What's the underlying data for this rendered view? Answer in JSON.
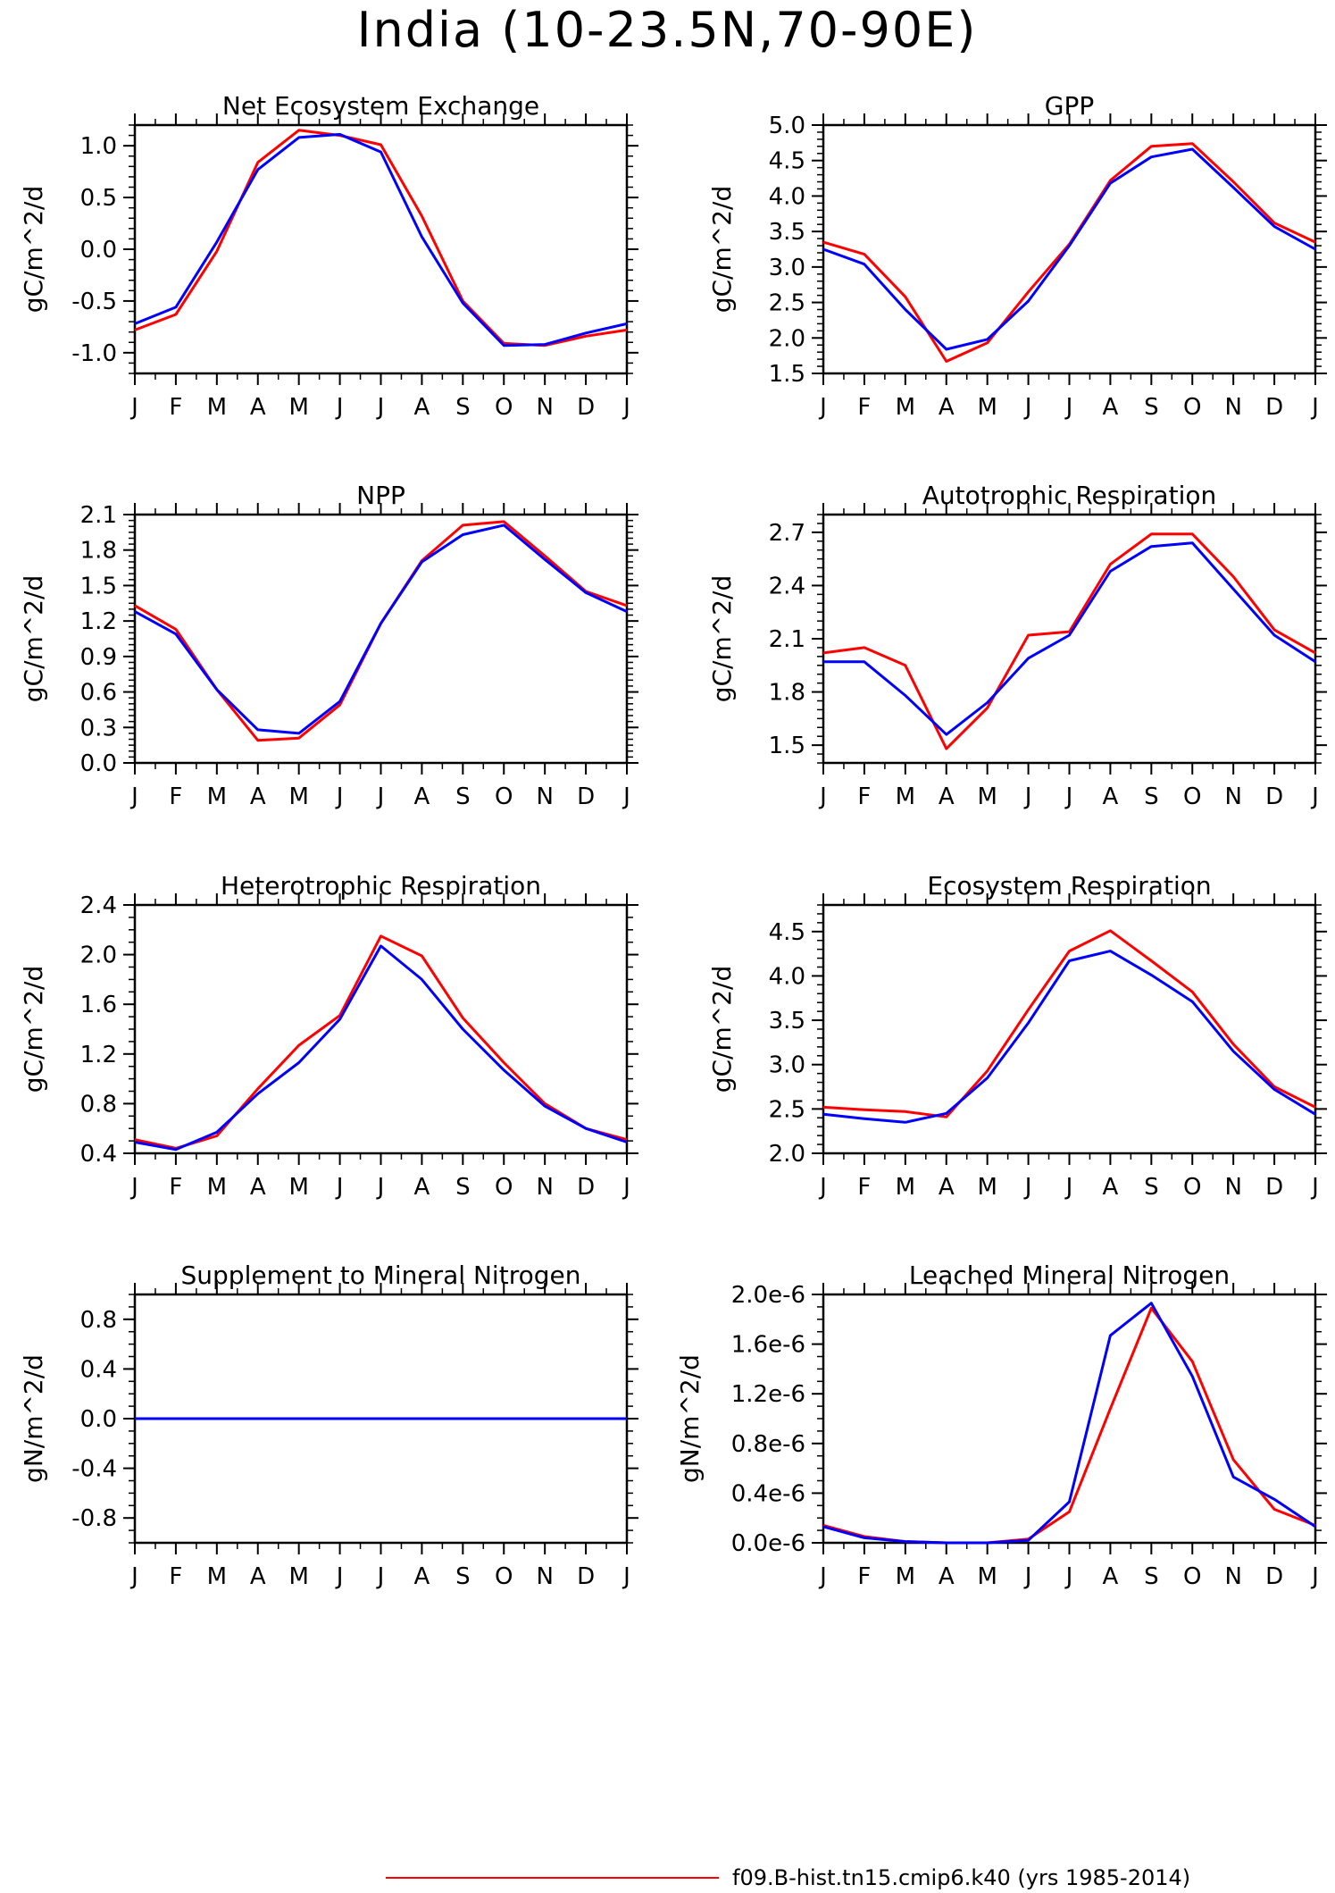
{
  "figure_title": "India (10-23.5N,70-90E)",
  "legend": {
    "entries": [
      {
        "label": "f09.B-hist.tn15.cmip6.k40 (yrs 1985-2014)",
        "color": "#ff0000"
      }
    ]
  },
  "months": [
    "J",
    "F",
    "M",
    "A",
    "M",
    "J",
    "J",
    "A",
    "S",
    "O",
    "N",
    "D",
    "J"
  ],
  "series_colors": [
    "#ff0000",
    "#0000ff"
  ],
  "chart_data": [
    {
      "type": "line",
      "title": "Net Ecosystem Exchange",
      "ylabel": "gC/m^2/d",
      "ylim": [
        -1.2,
        1.2
      ],
      "yticks": [
        -1.0,
        -0.5,
        0.0,
        0.5,
        1.0
      ],
      "ytick_labels": [
        "-1.0",
        "-0.5",
        "0.0",
        "0.5",
        "1.0"
      ],
      "yminor": 0.1,
      "series": [
        {
          "color": "#ff0000",
          "values": [
            -0.78,
            -0.63,
            -0.02,
            0.84,
            1.15,
            1.1,
            1.01,
            0.32,
            -0.5,
            -0.91,
            -0.93,
            -0.84,
            -0.78
          ]
        },
        {
          "color": "#0000ff",
          "values": [
            -0.72,
            -0.56,
            0.07,
            0.77,
            1.08,
            1.11,
            0.94,
            0.12,
            -0.52,
            -0.93,
            -0.92,
            -0.81,
            -0.72
          ]
        }
      ]
    },
    {
      "type": "line",
      "title": "GPP",
      "ylabel": "gC/m^2/d",
      "ylim": [
        1.5,
        5.0
      ],
      "yticks": [
        1.5,
        2.0,
        2.5,
        3.0,
        3.5,
        4.0,
        4.5,
        5.0
      ],
      "ytick_labels": [
        "1.5",
        "2.0",
        "2.5",
        "3.0",
        "3.5",
        "4.0",
        "4.5",
        "5.0"
      ],
      "yminor": 0.1,
      "series": [
        {
          "color": "#ff0000",
          "values": [
            3.35,
            3.18,
            2.58,
            1.67,
            1.93,
            2.65,
            3.32,
            4.22,
            4.7,
            4.74,
            4.2,
            3.62,
            3.35
          ]
        },
        {
          "color": "#0000ff",
          "values": [
            3.25,
            3.04,
            2.4,
            1.84,
            1.98,
            2.52,
            3.3,
            4.18,
            4.55,
            4.66,
            4.12,
            3.57,
            3.25
          ]
        }
      ]
    },
    {
      "type": "line",
      "title": "NPP",
      "ylabel": "gC/m^2/d",
      "ylim": [
        0.0,
        2.1
      ],
      "yticks": [
        0.0,
        0.3,
        0.6,
        0.9,
        1.2,
        1.5,
        1.8,
        2.1
      ],
      "ytick_labels": [
        "0.0",
        "0.3",
        "0.6",
        "0.9",
        "1.2",
        "1.5",
        "1.8",
        "2.1"
      ],
      "yminor": 0.05,
      "series": [
        {
          "color": "#ff0000",
          "values": [
            1.33,
            1.13,
            0.62,
            0.19,
            0.21,
            0.49,
            1.18,
            1.71,
            2.01,
            2.04,
            1.75,
            1.45,
            1.33
          ]
        },
        {
          "color": "#0000ff",
          "values": [
            1.28,
            1.09,
            0.62,
            0.28,
            0.25,
            0.52,
            1.18,
            1.7,
            1.93,
            2.01,
            1.72,
            1.44,
            1.28
          ]
        }
      ]
    },
    {
      "type": "line",
      "title": "Autotrophic Respiration",
      "ylabel": "gC/m^2/d",
      "ylim": [
        1.4,
        2.8
      ],
      "yticks": [
        1.5,
        1.8,
        2.1,
        2.4,
        2.7
      ],
      "ytick_labels": [
        "1.5",
        "1.8",
        "2.1",
        "2.4",
        "2.7"
      ],
      "yminor": 0.05,
      "series": [
        {
          "color": "#ff0000",
          "values": [
            2.02,
            2.05,
            1.95,
            1.48,
            1.71,
            2.12,
            2.14,
            2.52,
            2.69,
            2.69,
            2.45,
            2.15,
            2.02
          ]
        },
        {
          "color": "#0000ff",
          "values": [
            1.97,
            1.97,
            1.78,
            1.56,
            1.74,
            1.99,
            2.12,
            2.48,
            2.62,
            2.64,
            2.38,
            2.12,
            1.97
          ]
        }
      ]
    },
    {
      "type": "line",
      "title": "Heterotrophic Respiration",
      "ylabel": "gC/m^2/d",
      "ylim": [
        0.4,
        2.4
      ],
      "yticks": [
        0.4,
        0.8,
        1.2,
        1.6,
        2.0,
        2.4
      ],
      "ytick_labels": [
        "0.4",
        "0.8",
        "1.2",
        "1.6",
        "2.0",
        "2.4"
      ],
      "yminor": 0.1,
      "series": [
        {
          "color": "#ff0000",
          "values": [
            0.51,
            0.44,
            0.54,
            0.92,
            1.27,
            1.51,
            2.15,
            1.99,
            1.49,
            1.13,
            0.8,
            0.6,
            0.51
          ]
        },
        {
          "color": "#0000ff",
          "values": [
            0.49,
            0.43,
            0.57,
            0.88,
            1.13,
            1.48,
            2.07,
            1.8,
            1.4,
            1.07,
            0.78,
            0.6,
            0.49
          ]
        }
      ]
    },
    {
      "type": "line",
      "title": "Ecosystem Respiration",
      "ylabel": "gC/m^2/d",
      "ylim": [
        2.0,
        4.8
      ],
      "yticks": [
        2.0,
        2.5,
        3.0,
        3.5,
        4.0,
        4.5
      ],
      "ytick_labels": [
        "2.0",
        "2.5",
        "3.0",
        "3.5",
        "4.0",
        "4.5"
      ],
      "yminor": 0.1,
      "series": [
        {
          "color": "#ff0000",
          "values": [
            2.52,
            2.49,
            2.47,
            2.41,
            2.93,
            3.62,
            4.28,
            4.51,
            4.17,
            3.82,
            3.23,
            2.75,
            2.52
          ]
        },
        {
          "color": "#0000ff",
          "values": [
            2.44,
            2.39,
            2.35,
            2.45,
            2.85,
            3.47,
            4.17,
            4.28,
            4.01,
            3.71,
            3.15,
            2.72,
            2.44
          ]
        }
      ]
    },
    {
      "type": "line",
      "title": "Supplement to Mineral Nitrogen",
      "ylabel": "gN/m^2/d",
      "ylim": [
        -1.0,
        1.0
      ],
      "yticks": [
        -0.8,
        -0.4,
        0.0,
        0.4,
        0.8
      ],
      "ytick_labels": [
        "-0.8",
        "-0.4",
        "0.0",
        "0.4",
        "0.8"
      ],
      "yminor": 0.1,
      "series": [
        {
          "color": "#ff0000",
          "values": [
            0,
            0,
            0,
            0,
            0,
            0,
            0,
            0,
            0,
            0,
            0,
            0,
            0
          ]
        },
        {
          "color": "#0000ff",
          "values": [
            0,
            0,
            0,
            0,
            0,
            0,
            0,
            0,
            0,
            0,
            0,
            0,
            0
          ]
        }
      ]
    },
    {
      "type": "line",
      "title": "Leached Mineral Nitrogen",
      "ylabel": "gN/m^2/d",
      "ylim": [
        0.0,
        2e-06
      ],
      "yticks": [
        0.0,
        4e-07,
        8e-07,
        1.2e-06,
        1.6e-06,
        2e-06
      ],
      "ytick_labels": [
        "0.0e-6",
        "0.4e-6",
        "0.8e-6",
        "1.2e-6",
        "1.6e-6",
        "2.0e-6"
      ],
      "yminor": 1e-07,
      "series": [
        {
          "color": "#ff0000",
          "values": [
            1.4e-07,
            5e-08,
            1e-08,
            0,
            0,
            3e-08,
            2.5e-07,
            1.08e-06,
            1.89e-06,
            1.46e-06,
            6.7e-07,
            2.7e-07,
            1.4e-07
          ]
        },
        {
          "color": "#0000ff",
          "values": [
            1.3e-07,
            4e-08,
            1e-08,
            0,
            0,
            2e-08,
            3.3e-07,
            1.67e-06,
            1.93e-06,
            1.34e-06,
            5.3e-07,
            3.5e-07,
            1.3e-07
          ]
        }
      ]
    }
  ]
}
